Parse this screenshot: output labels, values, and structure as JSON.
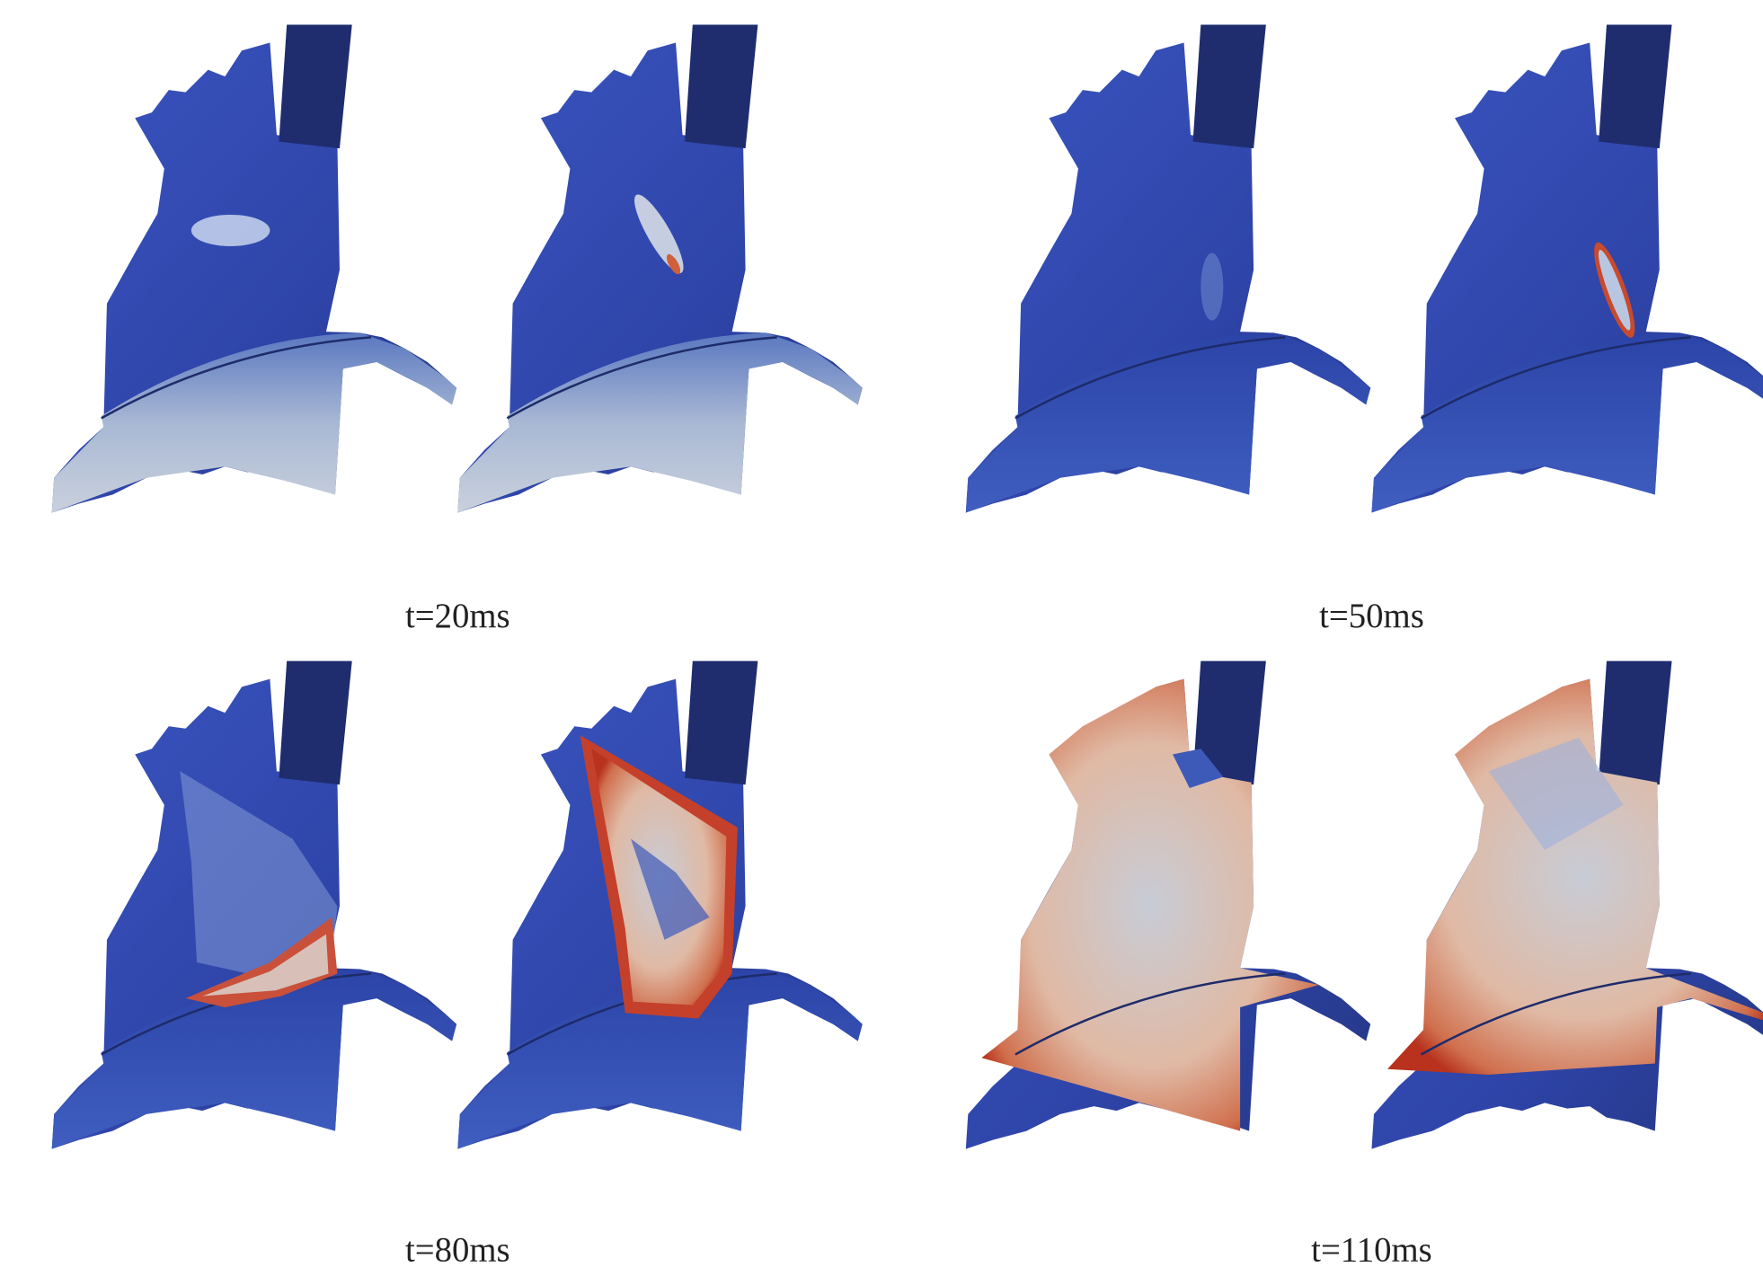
{
  "panels": [
    {
      "label": "t=20ms"
    },
    {
      "label": "t=50ms"
    },
    {
      "label": "t=80ms"
    },
    {
      "label": "t=110ms"
    }
  ]
}
